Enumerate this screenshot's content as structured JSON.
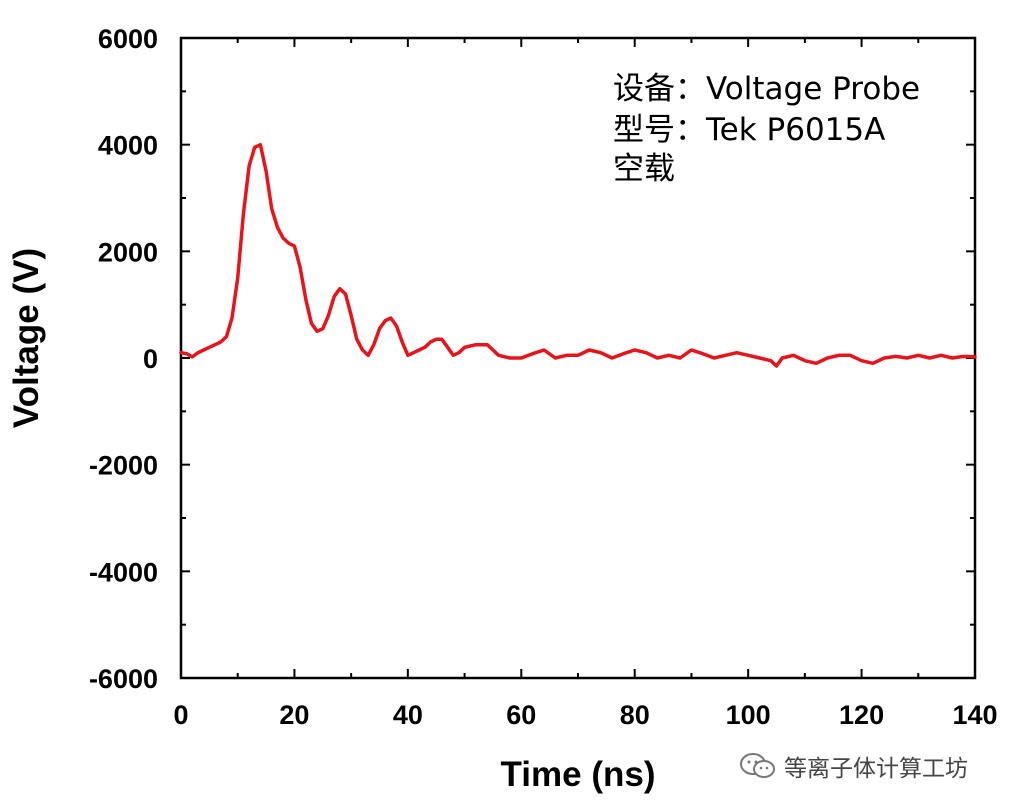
{
  "chart_data": {
    "type": "line",
    "xlabel": "Time (ns)",
    "ylabel": "Voltage (V)",
    "xlim": [
      0,
      140
    ],
    "ylim": [
      -6000,
      6000
    ],
    "x_ticks": [
      0,
      20,
      40,
      60,
      80,
      100,
      120,
      140
    ],
    "y_ticks": [
      -6000,
      -4000,
      -2000,
      0,
      2000,
      4000,
      6000
    ],
    "grid": false,
    "legend": "none",
    "series": [
      {
        "color": "#e8141b",
        "x": [
          0,
          1,
          2,
          3,
          4,
          5,
          6,
          7,
          8,
          9,
          10,
          11,
          12,
          13,
          14,
          15,
          16,
          17,
          18,
          19,
          20,
          21,
          22,
          23,
          24,
          25,
          26,
          27,
          28,
          29,
          30,
          31,
          32,
          33,
          34,
          35,
          36,
          37,
          38,
          39,
          40,
          41,
          42,
          43,
          44,
          45,
          46,
          47,
          48,
          49,
          50,
          52,
          54,
          56,
          58,
          60,
          62,
          64,
          66,
          68,
          70,
          72,
          74,
          76,
          78,
          80,
          82,
          84,
          86,
          88,
          90,
          92,
          94,
          96,
          98,
          100,
          102,
          104,
          105,
          106,
          108,
          110,
          112,
          114,
          116,
          118,
          120,
          122,
          124,
          126,
          128,
          130,
          132,
          134,
          136,
          138,
          140
        ],
        "y": [
          100,
          80,
          20,
          100,
          150,
          200,
          250,
          300,
          400,
          750,
          1500,
          2700,
          3600,
          3950,
          4000,
          3500,
          2800,
          2450,
          2250,
          2150,
          2100,
          1700,
          1100,
          650,
          500,
          550,
          800,
          1150,
          1300,
          1200,
          800,
          350,
          150,
          50,
          250,
          550,
          700,
          750,
          600,
          300,
          50,
          100,
          150,
          200,
          300,
          350,
          350,
          200,
          50,
          100,
          200,
          250,
          250,
          50,
          0,
          0,
          80,
          150,
          0,
          50,
          50,
          150,
          100,
          0,
          80,
          150,
          100,
          0,
          50,
          0,
          150,
          80,
          0,
          50,
          100,
          50,
          0,
          -50,
          -150,
          0,
          50,
          -50,
          -100,
          0,
          50,
          50,
          -50,
          -100,
          0,
          30,
          0,
          50,
          0,
          50,
          0,
          30,
          20
        ]
      }
    ],
    "annotations": [
      "设备：Voltage Probe",
      "型号：Tek P6015A",
      "空载"
    ]
  },
  "watermark": {
    "text": "等离子体计算工坊",
    "icon": "wechat-icon"
  }
}
